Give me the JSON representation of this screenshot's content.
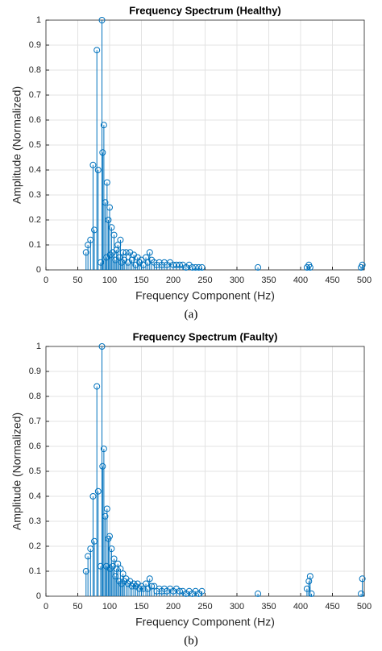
{
  "chart_data": [
    {
      "type": "stem",
      "title": "Frequency Spectrum (Healthy)",
      "x_label": "Frequency Component (Hz)",
      "y_label": "Amplitude (Normalized)",
      "caption": "(a)",
      "color": "#0072bd",
      "grid": true,
      "xlim": [
        0,
        500
      ],
      "xticks": [
        0,
        50,
        100,
        150,
        200,
        250,
        300,
        350,
        400,
        450,
        500
      ],
      "ylim": [
        0,
        1
      ],
      "yticks": [
        0,
        0.1,
        0.2,
        0.3,
        0.4,
        0.5,
        0.6,
        0.7,
        0.8,
        0.9,
        1
      ],
      "series": [
        {
          "name": "Healthy",
          "x": [
            63,
            66,
            70,
            74,
            76,
            80,
            82,
            86,
            88,
            89,
            91,
            93,
            95,
            96,
            98,
            100,
            101,
            103,
            105,
            107,
            109,
            111,
            113,
            115,
            117,
            119,
            121,
            123,
            126,
            129,
            132,
            135,
            138,
            141,
            144,
            147,
            150,
            153,
            157,
            160,
            163,
            166,
            170,
            174,
            178,
            182,
            186,
            190,
            195,
            200,
            205,
            210,
            215,
            220,
            225,
            230,
            235,
            240,
            245,
            333,
            410,
            413,
            415,
            495,
            497
          ],
          "values": [
            0.07,
            0.1,
            0.12,
            0.42,
            0.16,
            0.88,
            0.4,
            0.03,
            1.0,
            0.47,
            0.58,
            0.27,
            0.05,
            0.35,
            0.2,
            0.25,
            0.06,
            0.17,
            0.07,
            0.14,
            0.04,
            0.08,
            0.1,
            0.05,
            0.12,
            0.03,
            0.07,
            0.04,
            0.07,
            0.03,
            0.07,
            0.04,
            0.06,
            0.02,
            0.05,
            0.03,
            0.04,
            0.02,
            0.05,
            0.03,
            0.07,
            0.04,
            0.03,
            0.02,
            0.03,
            0.02,
            0.03,
            0.02,
            0.03,
            0.02,
            0.02,
            0.02,
            0.02,
            0.01,
            0.02,
            0.01,
            0.01,
            0.01,
            0.01,
            0.01,
            0.01,
            0.02,
            0.01,
            0.01,
            0.02
          ]
        }
      ]
    },
    {
      "type": "stem",
      "title": "Frequency Spectrum (Faulty)",
      "x_label": "Frequency Component (Hz)",
      "y_label": "Amplitude (Normalized)",
      "caption": "(b)",
      "color": "#0072bd",
      "grid": true,
      "xlim": [
        0,
        500
      ],
      "xticks": [
        0,
        50,
        100,
        150,
        200,
        250,
        300,
        350,
        400,
        450,
        500
      ],
      "ylim": [
        0,
        1
      ],
      "yticks": [
        0,
        0.1,
        0.2,
        0.3,
        0.4,
        0.5,
        0.6,
        0.7,
        0.8,
        0.9,
        1
      ],
      "series": [
        {
          "name": "Faulty",
          "x": [
            63,
            66,
            70,
            74,
            76,
            80,
            82,
            86,
            88,
            89,
            91,
            93,
            95,
            96,
            98,
            100,
            101,
            103,
            105,
            107,
            109,
            111,
            113,
            115,
            117,
            119,
            121,
            123,
            126,
            129,
            132,
            135,
            138,
            141,
            144,
            147,
            150,
            153,
            157,
            160,
            163,
            166,
            170,
            174,
            178,
            182,
            186,
            190,
            195,
            200,
            205,
            210,
            215,
            220,
            225,
            230,
            235,
            240,
            245,
            333,
            410,
            413,
            415,
            417,
            495,
            497
          ],
          "values": [
            0.1,
            0.16,
            0.19,
            0.4,
            0.22,
            0.84,
            0.42,
            0.12,
            1.0,
            0.52,
            0.59,
            0.32,
            0.12,
            0.35,
            0.23,
            0.24,
            0.11,
            0.19,
            0.12,
            0.15,
            0.08,
            0.11,
            0.13,
            0.06,
            0.11,
            0.05,
            0.09,
            0.06,
            0.07,
            0.05,
            0.06,
            0.04,
            0.05,
            0.04,
            0.05,
            0.03,
            0.04,
            0.03,
            0.05,
            0.03,
            0.07,
            0.04,
            0.04,
            0.02,
            0.03,
            0.02,
            0.03,
            0.02,
            0.03,
            0.02,
            0.03,
            0.02,
            0.02,
            0.01,
            0.02,
            0.01,
            0.02,
            0.01,
            0.02,
            0.01,
            0.03,
            0.06,
            0.08,
            0.01,
            0.01,
            0.07
          ]
        }
      ]
    }
  ]
}
